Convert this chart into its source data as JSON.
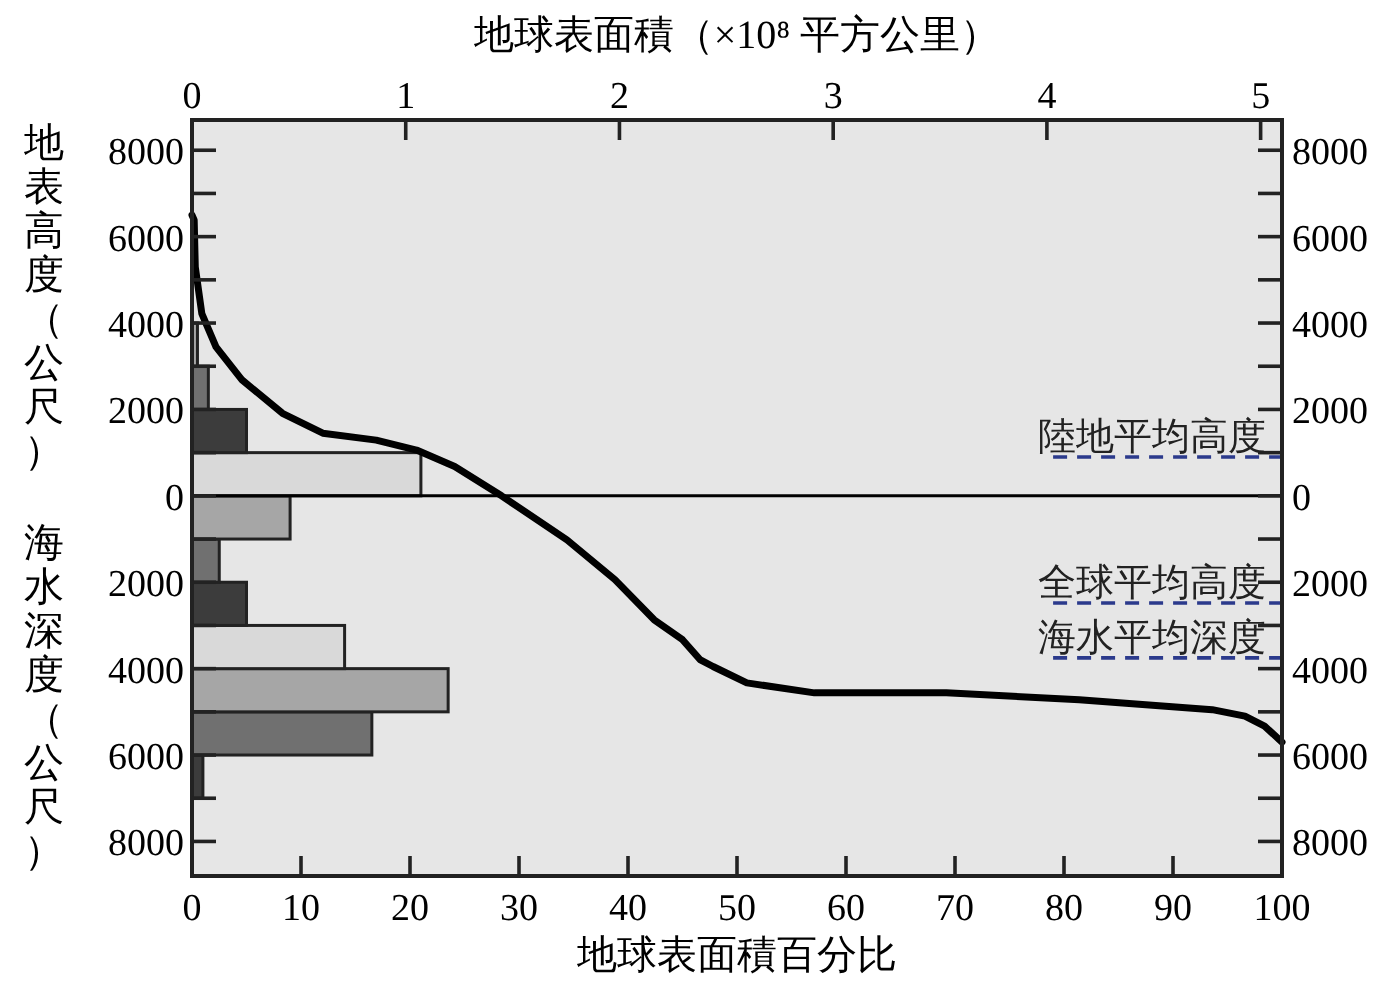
{
  "chart_data": {
    "type": "histogram",
    "orientation": "horizontal",
    "xlabel": "地球表面積百分比",
    "x2label": "地球表面積（×10⁸ 平方公里）",
    "ylabel": "地表高度（公尺）",
    "annotations": [
      "海水深度（公尺）"
    ],
    "xlim": [
      0,
      100
    ],
    "xticks": [
      0,
      10,
      20,
      30,
      40,
      50,
      60,
      70,
      80,
      90,
      100
    ],
    "x2lim": [
      0,
      5.1
    ],
    "x2ticks": [
      0,
      1,
      2,
      3,
      4,
      5
    ],
    "ylim": [
      -8800,
      8700
    ],
    "yticks": [
      {
        "value": -8000,
        "label": "8000"
      },
      {
        "value": -7000,
        "label": null
      },
      {
        "value": -6000,
        "label": "6000"
      },
      {
        "value": -5000,
        "label": null
      },
      {
        "value": -4000,
        "label": "4000"
      },
      {
        "value": -3000,
        "label": null
      },
      {
        "value": -2000,
        "label": "2000"
      },
      {
        "value": -1000,
        "label": null
      },
      0,
      {
        "value": 1000,
        "label": null
      },
      2000,
      {
        "value": 3000,
        "label": null
      },
      4000,
      {
        "value": 5000,
        "label": null
      },
      6000,
      {
        "value": 7000,
        "label": null
      },
      8000
    ],
    "y2lim": [
      -8800,
      8700
    ],
    "y2ticks": [
      {
        "value": -8000,
        "label": "8000"
      },
      {
        "value": -7000,
        "label": null
      },
      {
        "value": -6000,
        "label": "6000"
      },
      {
        "value": -5000,
        "label": null
      },
      {
        "value": -4000,
        "label": "4000"
      },
      {
        "value": -3000,
        "label": null
      },
      {
        "value": -2000,
        "label": "2000"
      },
      {
        "value": -1000,
        "label": null
      },
      0,
      {
        "value": 1000,
        "label": null
      },
      2000,
      {
        "value": 3000,
        "label": null
      },
      4000,
      {
        "value": 5000,
        "label": null
      },
      6000,
      {
        "value": 7000,
        "label": null
      },
      8000
    ],
    "series": [
      {
        "bins": [
          -7000,
          -6000,
          -5000,
          -4000,
          -3000,
          -2000,
          -1000,
          0,
          1000,
          2000,
          3000,
          4000
        ],
        "values": [
          1,
          16.5,
          23.5,
          14,
          5,
          2.5,
          9,
          21,
          5,
          1.5,
          0.5
        ],
        "colors": [
          "#3c3c3c",
          "#707070",
          "#a6a6a6",
          "#d9d9d9",
          "#3c3c3c",
          "#707070",
          "#a6a6a6",
          "#d9d9d9",
          "#3c3c3c",
          "#707070",
          "#a6a6a6"
        ]
      },
      {
        "type": "line",
        "color": "#000000",
        "values": [
          0,
          0.2,
          0.3,
          0.9,
          2.2,
          4.6,
          8.3,
          12,
          16.9,
          20.6,
          24.1,
          28.4,
          34.4,
          38.8,
          42.4,
          45.0,
          46.6,
          47.8,
          50.9,
          57.1,
          69.2,
          81.4,
          93.6,
          96.6,
          98.4,
          100
        ],
        "x": [
          6500,
          6380,
          5300,
          4220,
          3450,
          2680,
          1910,
          1450,
          1290,
          1060,
          680,
          0,
          -1020,
          -1940,
          -2870,
          -3330,
          -3790,
          -3950,
          -4330,
          -4560,
          -4560,
          -4720,
          -4950,
          -5100,
          -5330,
          -5700
        ]
      }
    ],
    "ref_lines": [
      {
        "axis": "y",
        "value": 0,
        "color": "#000000",
        "line_style": "solid"
      },
      {
        "axis": "y",
        "value": 900,
        "label": "陸地平均高度",
        "color": "#2b3a8c",
        "line_style": "dashed"
      },
      {
        "axis": "y",
        "value": -2480,
        "label": "全球平均高度",
        "color": "#2b3a8c",
        "line_style": "dashed"
      },
      {
        "axis": "y",
        "value": -3750,
        "label": "海水平均深度",
        "color": "#2b3a8c",
        "line_style": "dashed"
      }
    ],
    "grid": false,
    "marker": "none",
    "line_style": "solid"
  }
}
